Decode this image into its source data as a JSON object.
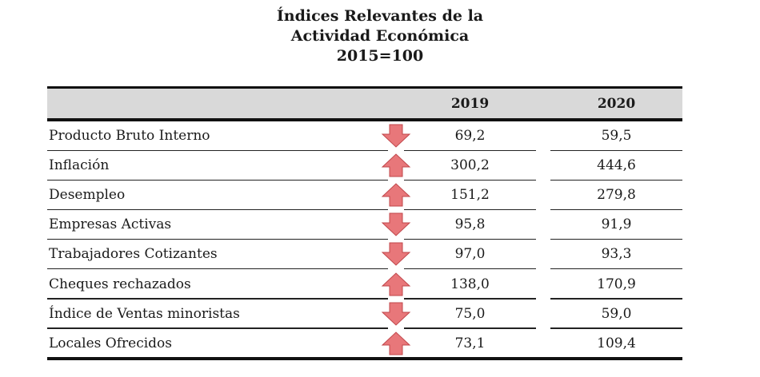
{
  "title": {
    "line1": "Índices Relevantes de la",
    "line2": "Actividad Económica",
    "line3": "2015=100"
  },
  "table": {
    "columns": [
      "",
      "2019",
      "2020"
    ],
    "rows": [
      {
        "label": "Producto Bruto Interno",
        "trend": "down",
        "v2019": "69,2",
        "v2020": "59,5"
      },
      {
        "label": "Inflación",
        "trend": "up",
        "v2019": "300,2",
        "v2020": "444,6"
      },
      {
        "label": "Desempleo",
        "trend": "up",
        "v2019": "151,2",
        "v2020": "279,8"
      },
      {
        "label": "Empresas Activas",
        "trend": "down",
        "v2019": "95,8",
        "v2020": "91,9"
      },
      {
        "label": "Trabajadores Cotizantes",
        "trend": "down",
        "v2019": "97,0",
        "v2020": "93,3"
      },
      {
        "label": "Cheques rechazados",
        "trend": "up",
        "v2019": "138,0",
        "v2020": "170,9"
      },
      {
        "label": "Índice de Ventas minoristas",
        "trend": "down",
        "v2019": "75,0",
        "v2020": "59,0"
      },
      {
        "label": "Locales Ofrecidos",
        "trend": "up",
        "v2019": "73,1",
        "v2020": "109,4"
      }
    ]
  },
  "colors": {
    "arrow_fill": "#e8777a",
    "arrow_stroke": "#c0474b",
    "header_bg": "#d9d9d9",
    "rule": "#111111"
  }
}
